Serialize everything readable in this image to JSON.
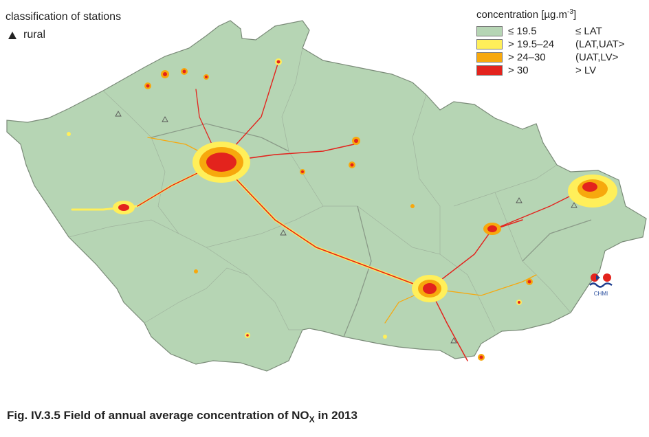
{
  "stations": {
    "heading": "classification of stations",
    "items": [
      {
        "label": "rural",
        "icon": "triangle-icon"
      }
    ]
  },
  "legend": {
    "title_prefix": "concentration [µg.m",
    "title_exp": "-3",
    "title_suffix": "]",
    "items": [
      {
        "range": "≤ 19.5",
        "class": "≤ LAT",
        "color": "#b6d5b4"
      },
      {
        "range": "> 19.5–24",
        "class": "(LAT,UAT>",
        "color": "#ffef5a"
      },
      {
        "range": "> 24–30",
        "class": "(UAT,LV>",
        "color": "#f7a80d"
      },
      {
        "range": "> 30",
        "class": "> LV",
        "color": "#e3231d"
      }
    ]
  },
  "caption": {
    "prefix": "Fig. IV.3.5  Field of annual average concentration of NO",
    "sub": "X",
    "suffix": " in 2013"
  },
  "logo": {
    "text": "CHMI"
  },
  "colors": {
    "land": "#b6d5b4",
    "border": "#7a8a78",
    "district": "#9fb39d",
    "low": "#ffef5a",
    "mid": "#f7a80d",
    "high": "#e3231d"
  }
}
